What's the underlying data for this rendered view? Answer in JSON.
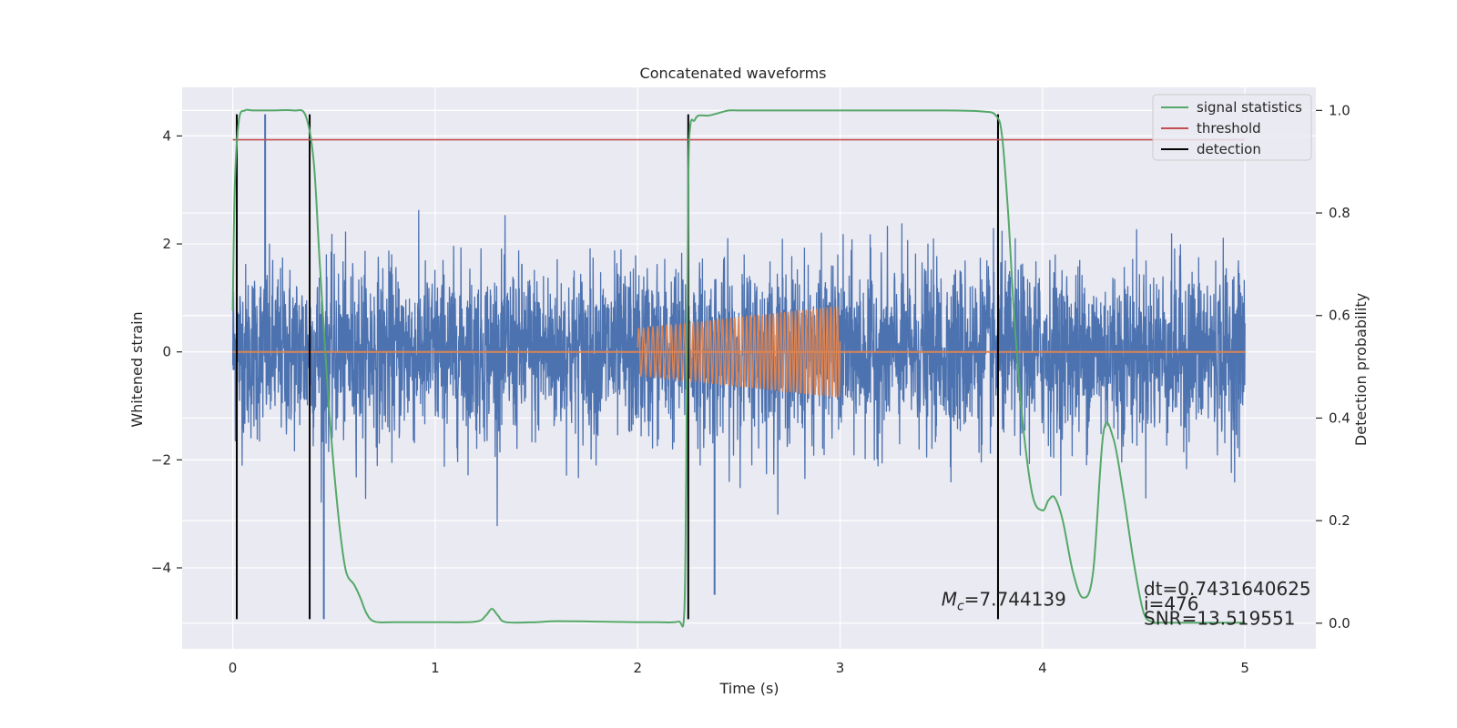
{
  "chart_data": {
    "type": "line",
    "title": "Concatenated waveforms",
    "xlabel": "Time (s)",
    "ylabel_left": "Whitened strain",
    "ylabel_right": "Detection probability",
    "xlim": [
      -0.25,
      5.35
    ],
    "ylim_left": [
      -5.5,
      4.9
    ],
    "ylim_right": [
      -0.05,
      1.045
    ],
    "x_ticks": [
      0,
      1,
      2,
      3,
      4,
      5
    ],
    "y_left_ticks": [
      -4,
      -2,
      0,
      2,
      4
    ],
    "y_right_ticks": [
      0.0,
      0.2,
      0.4,
      0.6,
      0.8,
      1.0
    ],
    "grid": true,
    "legend_position": "top-right",
    "colors": {
      "background": "#eaeaf2",
      "strain": "#4c72b0",
      "template": "#dd8452",
      "signal_statistics": "#55a868",
      "threshold": "#c44e52",
      "detection": "#000000"
    },
    "series": [
      {
        "name": "signal statistics",
        "axis": "right",
        "x": [
          0.0,
          0.01,
          0.03,
          0.06,
          0.1,
          0.2,
          0.3,
          0.36,
          0.4,
          0.43,
          0.47,
          0.5,
          0.53,
          0.56,
          0.6,
          0.63,
          0.66,
          0.7,
          0.8,
          1.0,
          1.2,
          1.25,
          1.28,
          1.31,
          1.35,
          1.5,
          1.6,
          1.8,
          2.0,
          2.1,
          2.2,
          2.23,
          2.24,
          2.25,
          2.26,
          2.28,
          2.3,
          2.35,
          2.4,
          2.45,
          2.5,
          2.6,
          3.0,
          3.5,
          3.7,
          3.77,
          3.8,
          3.83,
          3.86,
          3.9,
          3.95,
          4.0,
          4.03,
          4.06,
          4.1,
          4.15,
          4.2,
          4.25,
          4.3,
          4.35,
          4.4,
          4.45,
          4.5,
          4.55,
          4.6,
          5.0
        ],
        "y": [
          0.61,
          0.85,
          0.98,
          1.0,
          1.0,
          1.0,
          1.0,
          0.99,
          0.9,
          0.7,
          0.45,
          0.3,
          0.18,
          0.1,
          0.075,
          0.05,
          0.02,
          0.003,
          0.002,
          0.002,
          0.003,
          0.015,
          0.028,
          0.015,
          0.002,
          0.002,
          0.004,
          0.003,
          0.002,
          0.002,
          0.003,
          0.02,
          0.3,
          0.85,
          0.97,
          0.98,
          0.99,
          0.99,
          0.995,
          1.0,
          1.0,
          1.0,
          1.0,
          1.0,
          0.998,
          0.99,
          0.95,
          0.8,
          0.6,
          0.4,
          0.25,
          0.22,
          0.24,
          0.245,
          0.2,
          0.1,
          0.05,
          0.1,
          0.37,
          0.36,
          0.25,
          0.12,
          0.02,
          0.002,
          0.001,
          0.001
        ]
      },
      {
        "name": "threshold",
        "axis": "left",
        "x": [
          0.0,
          5.0
        ],
        "y": [
          3.93,
          3.93
        ]
      },
      {
        "name": "detection",
        "axis": "left",
        "x": [
          0.02,
          0.38,
          2.25,
          3.78
        ],
        "y_range": [
          -4.95,
          4.4
        ]
      },
      {
        "axis": "left",
        "style": "noise",
        "x_range": [
          0.0,
          5.0
        ],
        "rms": 0.8,
        "amplitude_range": [
          -3.5,
          3.2
        ],
        "spikes": [
          {
            "x": 0.16,
            "y": 4.4
          },
          {
            "x": 0.45,
            "y": -4.95
          },
          {
            "x": 2.38,
            "y": -4.5
          }
        ]
      },
      {
        "axis": "left",
        "style": "template",
        "flat_x": [
          0.0,
          5.0
        ],
        "flat_y": 0,
        "chirp_x_range": [
          2.0,
          3.0
        ],
        "chirp_amplitude_range": [
          0.43,
          0.85
        ]
      }
    ],
    "annotations": [
      {
        "text_html": "M<tspan font-style=\"italic\">c</tspan>",
        "value": "=7.744139",
        "x": 3.5,
        "y": -4.7,
        "axis": "left"
      },
      {
        "text": "dt=0.7431640625",
        "x": 4.5,
        "y": 0.055,
        "axis": "right"
      },
      {
        "text": " i=476",
        "x": 4.5,
        "y": 0.025,
        "axis": "right"
      },
      {
        "text": "SNR=13.519551",
        "x": 4.5,
        "y": -0.003,
        "axis": "right"
      }
    ]
  }
}
